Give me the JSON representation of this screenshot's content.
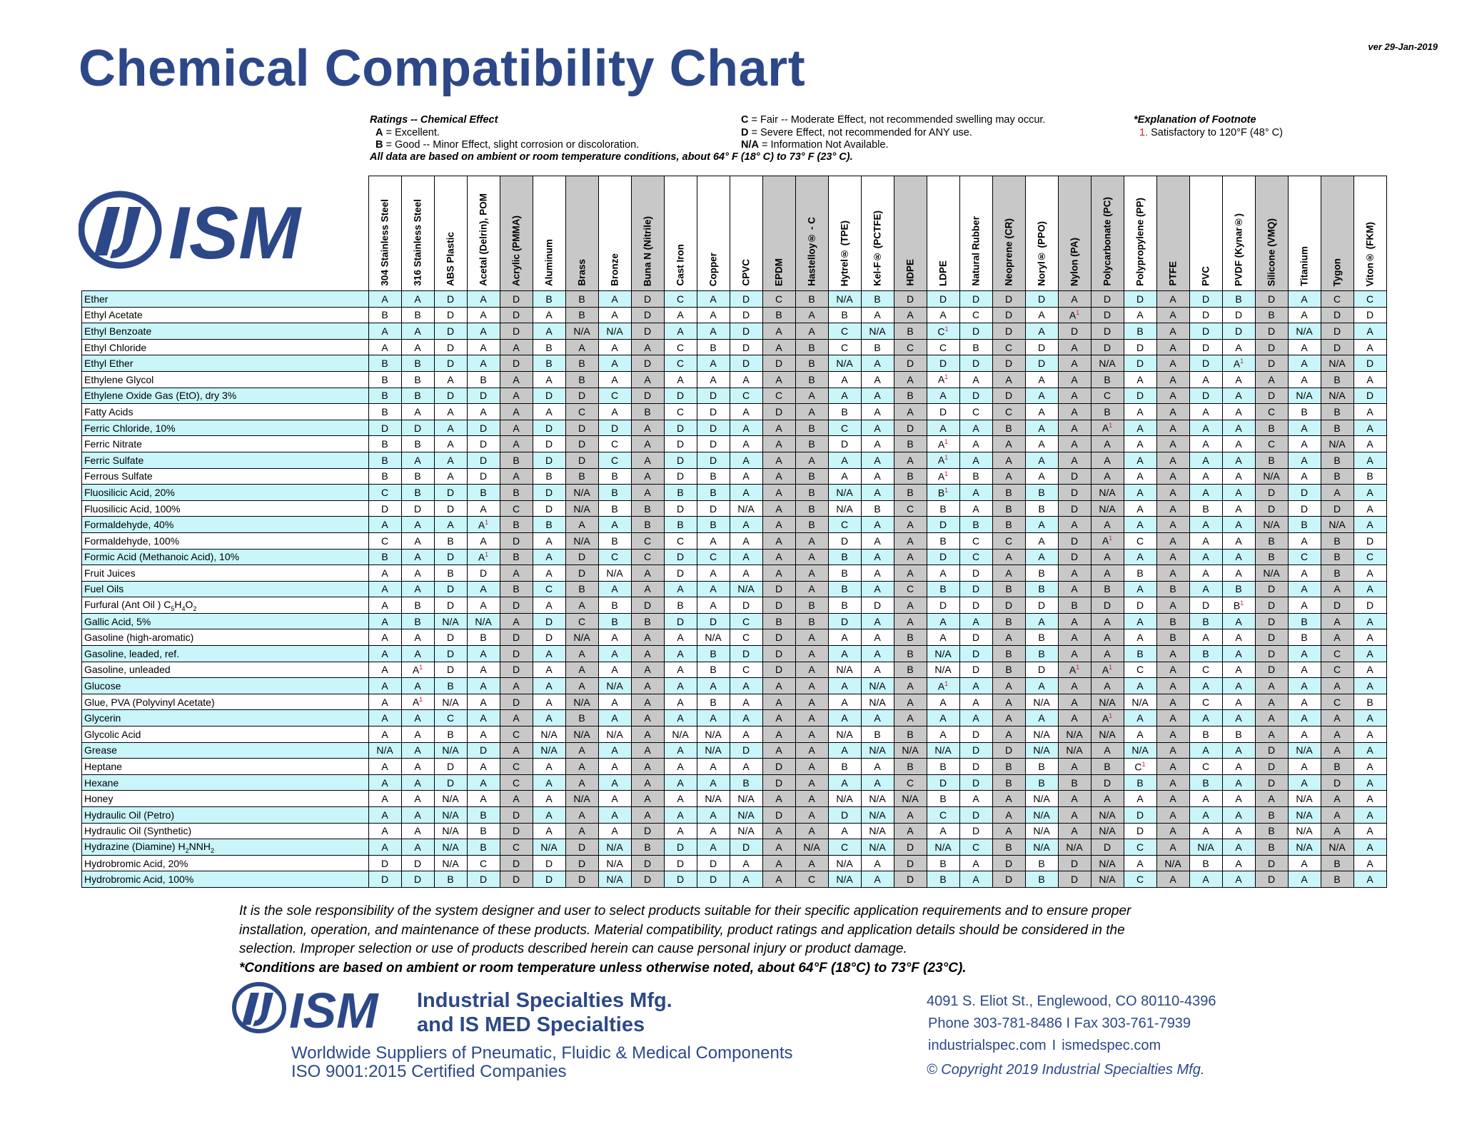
{
  "version": "ver 29-Jan-2019",
  "title": "Chemical Compatibility Chart",
  "logo_text": "ISM",
  "legend": {
    "heading": "Ratings -- Chemical Effect",
    "a": [
      "A",
      " = Excellent."
    ],
    "b": [
      "B",
      " = Good -- Minor Effect, slight corrosion or discoloration."
    ],
    "c": [
      "C",
      " = Fair -- Moderate Effect, not recommended swelling may occur."
    ],
    "d": [
      "D",
      " = Severe Effect, not recommended for ANY use."
    ],
    "na": [
      "N/A",
      " = Information Not Available."
    ],
    "note": "All data are based on ambient or room temperature conditions, about 64° F (18° C) to 73° F (23° C).",
    "footnote_heading": "*Explanation of Footnote",
    "footnote_num": "1.",
    "footnote_text": " Satisfactory to 120°F (48° C)"
  },
  "materials": [
    "304 Stainless Steel",
    "316 Stainless Steel",
    "ABS Plastic",
    "Acetal (Delrin), POM",
    "Acrylic (PMMA)",
    "Aluminum",
    "Brass",
    "Bronze",
    "Buna N (Nitrile)",
    "Cast Iron",
    "Copper",
    "CPVC",
    "EPDM",
    "Hastelloy® - C",
    "Hytrel® (TPE)",
    "Kel-F® (PCTFE)",
    "HDPE",
    "LDPE",
    "Natural Rubber",
    "Neoprene (CR)",
    "Noryl® (PPO)",
    "Nylon (PA)",
    "Polycarbonate (PC)",
    "Polypropylene (PP)",
    "PTFE",
    "PVC",
    "PVDF (Kynar®)",
    "Silicone (VMQ)",
    "Titanium",
    "Tygon",
    "Viton® (FKM)"
  ],
  "rows": [
    {
      "name": "Ether",
      "r": "A A D A D B B A D C A D C B N/A B D D D D D A D D A D B D A C C"
    },
    {
      "name": "Ethyl Acetate",
      "r": "B B D A D A B A D A A D B A B A A A C D A A1 D A A D D B A D D"
    },
    {
      "name": "Ethyl Benzoate",
      "r": "A A D A D A N/A N/A D A A D A A C N/A B C1 D D A D D B A D D D N/A D A"
    },
    {
      "name": "Ethyl Chloride",
      "r": "A A D A A B A A A C B D A B C B C C B C D A D D A D A D A D A"
    },
    {
      "name": "Ethyl Ether",
      "r": "B B D A D B B A D C A D D B N/A A D D D D D A N/A D A D A1 D A N/A D"
    },
    {
      "name": "Ethylene Glycol",
      "r": "B B A B A A B A A A A A A B A A A A1 A A A A B A A A A A A B A"
    },
    {
      "name": "Ethylene Oxide Gas (EtO), dry 3%",
      "r": "B B D D A D D C D D D C C A A A B A D D A A C D A D A D N/A N/A D"
    },
    {
      "name": "Fatty Acids",
      "r": "B A A A A A C A B C D A D A B A A D C C A A B A A A A C B B A"
    },
    {
      "name": "Ferric Chloride, 10%",
      "r": "D D A D A D D D A D D A A B C A D A A B A A A1 A A A A B A B A"
    },
    {
      "name": "Ferric Nitrate",
      "r": "B B A D A D D C A D D A A B D A B A1 A A A A A A A A A C A N/A A"
    },
    {
      "name": "Ferric Sulfate",
      "r": "B A A D B D D C A D D A A A A A A A1 A A A A A A A A A B A B A"
    },
    {
      "name": "Ferrous Sulfate",
      "r": "B B A D A B B B A D B A A B A A B A1 B A A D A A A A A N/A A B B"
    },
    {
      "name": "Fluosilicic Acid, 20%",
      "r": "C B D B B D N/A B A B B A A B N/A A B B1 A B B D N/A A A A A D D A A"
    },
    {
      "name": "Fluosilicic Acid, 100%",
      "r": "D D D A C D N/A B B D D N/A A B N/A B C B A B B D N/A A A B A D D D A"
    },
    {
      "name": "Formaldehyde, 40%",
      "r": "A A A A1 B B A A B B B A A B C A A D B B A A A A A A A N/A B N/A A"
    },
    {
      "name": "Formaldehyde, 100%",
      "r": "C A B A D A N/A B C C A A A A D A A B C C A D A1 C A A A B A B D"
    },
    {
      "name": "Formic Acid (Methanoic Acid), 10%",
      "r": "B A D A1 B A D C C D C A A A B A A D C A A D A A A A A B C B C"
    },
    {
      "name": "Fruit Juices",
      "r": "A A B D A A D N/A A D A A A A B A A A D A B A A B A A A N/A A B A"
    },
    {
      "name": "Fuel Oils",
      "r": "A A D A B C B A A A A N/A D A B A C B D B B A B A B A B D A A A"
    },
    {
      "name": "Furfural (Ant Oil ) C5H4O2",
      "r": "A B D A D A A B D B A D D B B D A D D D D B D D A D B1 D A D D"
    },
    {
      "name": "Gallic Acid, 5%",
      "r": "A B N/A N/A A D C B B D D C B B D A A A A B A A A A B B A D B A A"
    },
    {
      "name": "Gasoline (high-aromatic)",
      "r": "A A D B D D N/A A A A N/A C D A A A B A D A B A A A B A A D B A A"
    },
    {
      "name": "Gasoline, leaded, ref.",
      "r": "A A D A D A A A A A B D D A A A B N/A D B B A A B A B A D A C A"
    },
    {
      "name": "Gasoline, unleaded",
      "r": "A A1 D A D A A A A A B C D A N/A A B N/A D B D A1 A1 C A C A D A C A"
    },
    {
      "name": "Glucose",
      "r": "A A B A A A A N/A A A A A A A A N/A A A1 A A A A A A A A A A A A A"
    },
    {
      "name": "Glue, PVA (Polyvinyl Acetate)",
      "r": "A A1 N/A A D A N/A A A A B A A A A N/A A A A A N/A A N/A N/A A C A A A C B"
    },
    {
      "name": "Glycerin",
      "r": "A A C A A A B A A A A A A A A A A A A A A A A1 A A A A A A A A"
    },
    {
      "name": "Glycolic Acid",
      "r": "A A B A C N/A N/A N/A A N/A N/A A A A N/A B B A D A N/A N/A N/A A A B B A A A A"
    },
    {
      "name": "Grease",
      "r": "N/A A N/A D A N/A A A A A N/A D A A A N/A N/A N/A D D N/A N/A A N/A A A A D N/A A A"
    },
    {
      "name": "Heptane",
      "r": "A A D A C A A A A A A A D A B A B B D B B A B C1 A C A D A B A"
    },
    {
      "name": "Hexane",
      "r": "A A D A C A A A A A A B D A A A C D D B B B D B A B A D A D A"
    },
    {
      "name": "Honey",
      "r": "A A N/A A A A N/A A A A N/A N/A A A N/A N/A N/A B A A N/A A A A A A A A N/A A A"
    },
    {
      "name": "Hydraulic Oil (Petro)",
      "r": "A A N/A B D A A A A A A N/A D A D N/A A C D A N/A A N/A D A A A B N/A A A"
    },
    {
      "name": "Hydraulic Oil (Synthetic)",
      "r": "A A N/A B D A A A D A A N/A A A A N/A A A D A N/A A N/A D A A A B N/A A A"
    },
    {
      "name": "Hydrazine (Diamine) H2NNH2",
      "r": "A A N/A B C N/A D N/A B D A D A N/A C N/A D N/A C B N/A N/A D C A N/A A B N/A N/A A"
    },
    {
      "name": "Hydrobromic Acid, 20%",
      "r": "D D N/A C D D D N/A D D D A A A N/A A D B A D B D N/A A N/A B A D A B A"
    },
    {
      "name": "Hydrobromic Acid, 100%",
      "r": "D D B D D D D N/A D D D A A C N/A A D B A D B D N/A C A A A D A B A"
    }
  ],
  "gray_columns": [
    4,
    6,
    8,
    12,
    13,
    16,
    19,
    21,
    22,
    24,
    27,
    29
  ],
  "colors": {
    "title": "#2d4888",
    "row_cyan": "#c9f5fb",
    "col_gray": "#c8c8c8",
    "footnote": "#d21f2b"
  },
  "disclaimer": {
    "l1": "It is the sole responsibility of the system designer and user to select products suitable for their specific application requirements and to ensure proper",
    "l2": "installation, operation, and maintenance of these products. Material compatibility, product ratings and application details should be considered in the",
    "l3": "selection. Improper selection or use of products described herein can cause personal injury or product damage.",
    "l4": "*Conditions are based on ambient or room temperature unless otherwise noted, about 64°F (18°C) to 73°F (23°C)."
  },
  "footer": {
    "company1": "Industrial Specialties Mfg.",
    "company2": "and IS MED Specialties",
    "tagline1": "Worldwide Suppliers of Pneumatic, Fluidic & Medical Components",
    "tagline2": "ISO 9001:2015 Certified Companies",
    "address": "4091  S. Eliot St., Englewood, CO 80110-4396",
    "phone": "Phone  303-781-8486 I Fax 303-761-7939",
    "web1": "industrialspec.com",
    "web_sep": "I",
    "web2": "ismedspec.com",
    "copyright": "© Copyright 2019 Industrial Specialties Mfg."
  }
}
